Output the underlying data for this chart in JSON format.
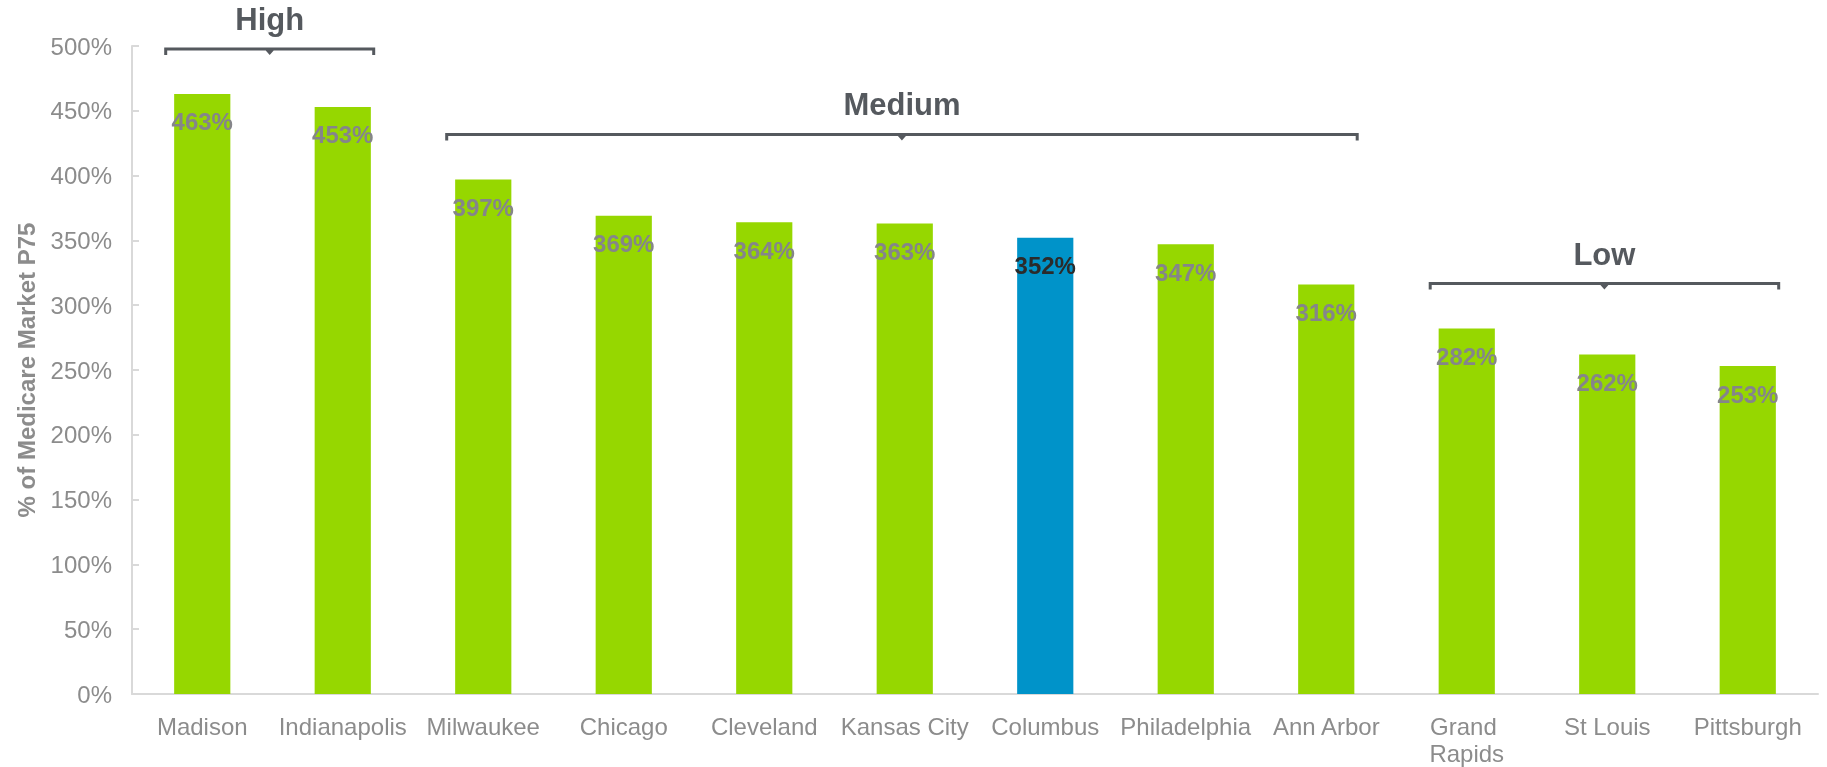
{
  "chart_data": {
    "type": "bar",
    "ylabel": "% of Medicare Market P75",
    "annotations": [
      "High",
      "Medium",
      "Low"
    ],
    "categories": [
      "Madison",
      "Indianapolis",
      "Milwaukee",
      "Chicago",
      "Cleveland",
      "Kansas City",
      "Columbus",
      "Philadelphia",
      "Ann Arbor",
      "Grand Rapids",
      "St Louis",
      "Pittsburgh"
    ],
    "values": [
      463,
      453,
      397,
      369,
      364,
      363,
      352,
      347,
      316,
      282,
      262,
      253
    ],
    "colors": [
      "#96d700",
      "#96d700",
      "#96d700",
      "#96d700",
      "#96d700",
      "#96d700",
      "#0093c9",
      "#96d700",
      "#96d700",
      "#96d700",
      "#96d700",
      "#96d700"
    ],
    "value_labels": [
      "463%",
      "453%",
      "397%",
      "369%",
      "364%",
      "363%",
      "352%",
      "347%",
      "316%",
      "282%",
      "262%",
      "253%"
    ],
    "ylim": [
      0,
      500
    ],
    "yticks": [
      {
        "value": 0,
        "label": "0%"
      },
      {
        "value": 50,
        "label": "50%"
      },
      {
        "value": 100,
        "label": "100%"
      },
      {
        "value": 150,
        "label": "150%"
      },
      {
        "value": 200,
        "label": "200%"
      },
      {
        "value": 250,
        "label": "250%"
      },
      {
        "value": 300,
        "label": "300%"
      },
      {
        "value": 350,
        "label": "350%"
      },
      {
        "value": 400,
        "label": "400%"
      },
      {
        "value": 450,
        "label": "450%"
      },
      {
        "value": 500,
        "label": "500%"
      }
    ],
    "grid": false
  }
}
